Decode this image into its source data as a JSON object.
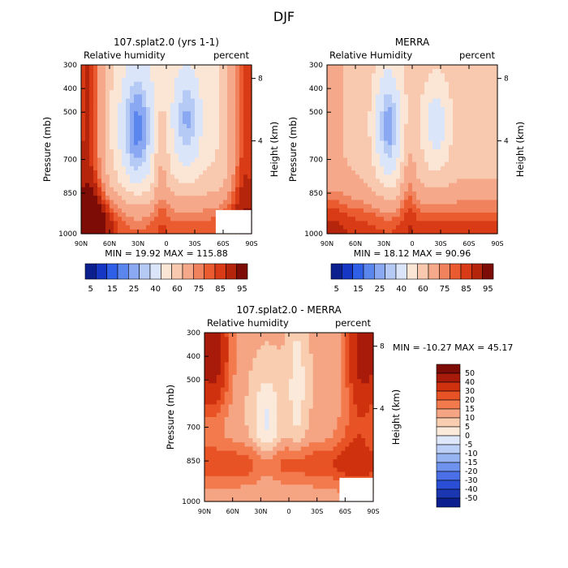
{
  "figure_title": "DJF",
  "chart_data": [
    {
      "type": "heatmap",
      "title": "107.splat2.0 (yrs 1-1)",
      "left_label": "Relative humidity",
      "right_label": "percent",
      "ylabel": "Pressure (mb)",
      "y2label": "Height (km)",
      "yticks": [
        "300",
        "400",
        "500",
        "700",
        "850",
        "1000"
      ],
      "y2ticks": [
        "8",
        "4"
      ],
      "xticks": [
        "90N",
        "60N",
        "30N",
        "0",
        "30S",
        "60S",
        "90S"
      ],
      "stats": "MIN =  19.92   MAX = 115.88",
      "colorbar_labels": [
        "5",
        "15",
        "25",
        "40",
        "60",
        "75",
        "85",
        "95"
      ]
    },
    {
      "type": "heatmap",
      "title": "MERRA",
      "left_label": "Relative Humidity",
      "right_label": "percent",
      "ylabel": "Pressure (mb)",
      "y2label": "Height (km)",
      "yticks": [
        "300",
        "400",
        "500",
        "700",
        "850",
        "1000"
      ],
      "y2ticks": [
        "8",
        "4"
      ],
      "xticks": [
        "90N",
        "60N",
        "30N",
        "0",
        "30S",
        "60S",
        "90S"
      ],
      "stats": "MIN =  18.12   MAX =  90.96",
      "colorbar_labels": [
        "5",
        "15",
        "25",
        "40",
        "60",
        "75",
        "85",
        "95"
      ]
    },
    {
      "type": "heatmap",
      "title": "107.splat2.0 - MERRA",
      "left_label": "Relative humidity",
      "right_label": "percent",
      "ylabel": "Pressure (mb)",
      "y2label": "Height (km)",
      "yticks": [
        "300",
        "400",
        "500",
        "700",
        "850",
        "1000"
      ],
      "y2ticks": [
        "8",
        "4"
      ],
      "xticks": [
        "90N",
        "60N",
        "30N",
        "0",
        "30S",
        "60S",
        "90S"
      ],
      "stats": "MIN = -10.27   MAX =  45.17",
      "colorbar_labels": [
        "50",
        "40",
        "30",
        "20",
        "15",
        "10",
        "5",
        "0",
        "-5",
        "-10",
        "-15",
        "-20",
        "-30",
        "-40",
        "-50"
      ]
    }
  ],
  "palettes": {
    "absolute": [
      "#0b1f8f",
      "#1636c4",
      "#2f5fe6",
      "#5a86ee",
      "#8aa9f2",
      "#b6caf6",
      "#dbe5fa",
      "#fbe6d6",
      "#f8c9ae",
      "#f5a98a",
      "#f1825e",
      "#ea5c2f",
      "#d83b15",
      "#b5250c",
      "#7d0c06"
    ],
    "difference": [
      "#7d0c06",
      "#a81b0a",
      "#cf310e",
      "#e85325",
      "#f27a4d",
      "#f5a583",
      "#f8cdb0",
      "#fbe9da",
      "#dfe8fa",
      "#bccff6",
      "#97b4f2",
      "#6f92ee",
      "#4a6fe6",
      "#2a4fd6",
      "#1a36b0",
      "#0b1f8f"
    ]
  }
}
